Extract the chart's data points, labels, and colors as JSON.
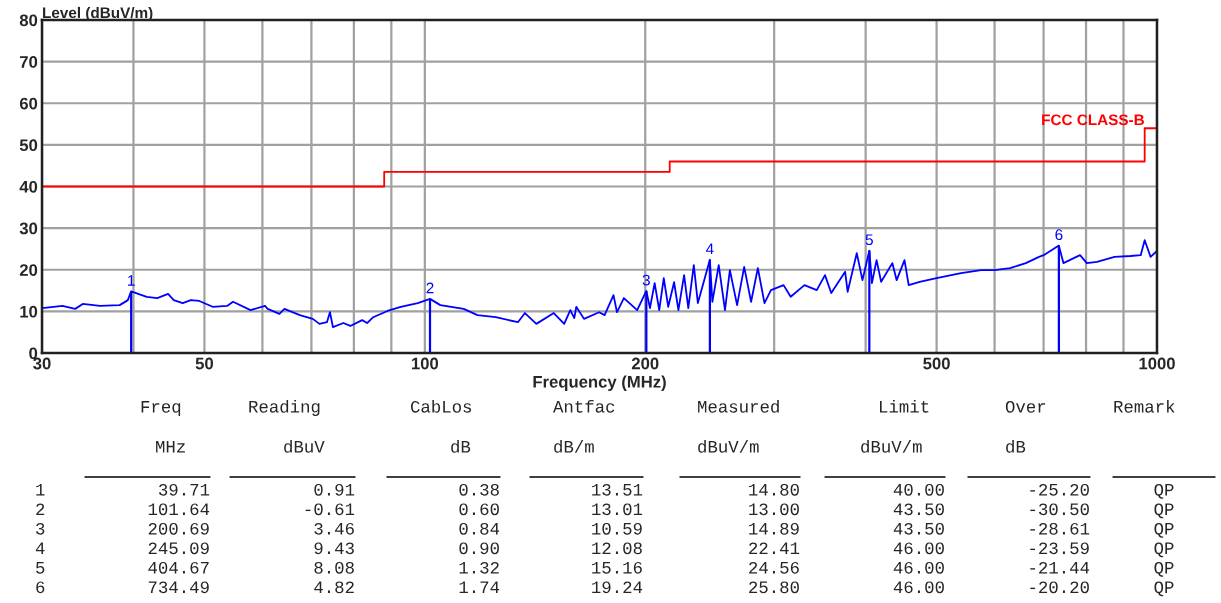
{
  "chart_data": {
    "type": "line",
    "ylabel": "Level (dBuV/m)",
    "xlabel": "Frequency (MHz)",
    "log": "x",
    "xlim": [
      30,
      1000
    ],
    "xticks": [
      30,
      {
        "value": 40,
        "label": null
      },
      50,
      {
        "value": 60,
        "label": null
      },
      {
        "value": 70,
        "label": null
      },
      {
        "value": 80,
        "label": null
      },
      {
        "value": 90,
        "label": null
      },
      100,
      200,
      {
        "value": 300,
        "label": null
      },
      {
        "value": 400,
        "label": null
      },
      500,
      {
        "value": 600,
        "label": null
      },
      {
        "value": 700,
        "label": null
      },
      {
        "value": 800,
        "label": null
      },
      {
        "value": 900,
        "label": null
      },
      1000
    ],
    "ylim": [
      0,
      80
    ],
    "yticks": [
      0,
      10,
      20,
      30,
      40,
      50,
      60,
      70,
      80
    ],
    "grid": true,
    "legend": false,
    "series": [
      {
        "color": "#0000ff",
        "x": [
          30,
          32,
          33.3,
          34.1,
          36,
          38.3,
          39.3,
          39.71,
          41.7,
          43.1,
          44.6,
          45.4,
          46.7,
          47.9,
          49.2,
          51.3,
          53.7,
          54.7,
          57.8,
          60.5,
          61,
          63.3,
          64.3,
          67.5,
          70.3,
          71.8,
          73.5,
          74.2,
          74.9,
          77.4,
          79.1,
          82.1,
          83.4,
          85,
          88.9,
          92.7,
          97.8,
          101.64,
          105,
          113,
          118,
          125,
          134,
          137,
          142,
          150,
          155,
          158,
          160,
          161,
          165,
          173,
          176,
          181,
          183,
          187,
          195,
          200.69,
          203,
          206,
          209,
          212,
          215,
          219,
          222,
          226,
          229,
          233,
          236,
          245.09,
          247,
          252,
          257,
          261,
          267,
          273,
          279,
          285,
          291,
          297,
          309,
          316,
          330,
          343,
          352,
          359,
          375,
          378,
          389,
          396,
          404.67,
          408,
          414,
          420,
          435,
          441,
          452,
          458,
          474,
          500,
          540,
          575,
          600,
          630,
          662,
          690,
          700,
          734.49,
          745,
          785,
          802,
          828,
          875,
          920,
          950,
          962,
          980,
          1000
        ],
        "values": [
          10.8,
          11.3,
          10.6,
          11.8,
          11.3,
          11.5,
          12.7,
          14.8,
          13.5,
          13.2,
          14.2,
          12.7,
          12.0,
          12.7,
          12.5,
          11.1,
          11.3,
          12.3,
          10.3,
          11.3,
          10.6,
          9.4,
          10.6,
          9.1,
          8.2,
          7.0,
          7.4,
          9.8,
          6.2,
          7.2,
          6.5,
          7.9,
          7.2,
          8.6,
          10.1,
          11.1,
          12.0,
          13.0,
          11.5,
          10.6,
          9.1,
          8.6,
          7.4,
          9.6,
          7.0,
          9.6,
          7.0,
          10.3,
          8.4,
          11.1,
          8.2,
          9.8,
          9.1,
          13.9,
          9.8,
          13.2,
          10.3,
          14.9,
          10.8,
          16.8,
          10.3,
          18.0,
          11.1,
          17.0,
          10.3,
          18.7,
          10.8,
          21.1,
          12.0,
          22.4,
          12.3,
          21.1,
          10.3,
          19.9,
          11.5,
          20.7,
          12.3,
          20.4,
          12.0,
          15.1,
          16.3,
          13.5,
          16.3,
          15.1,
          18.7,
          14.4,
          19.5,
          14.7,
          24.0,
          17.5,
          24.6,
          16.8,
          22.3,
          17.1,
          21.6,
          17.5,
          22.3,
          16.3,
          17.1,
          18.0,
          19.2,
          19.9,
          19.9,
          20.4,
          21.6,
          23.1,
          23.5,
          25.8,
          21.6,
          23.5,
          21.6,
          21.9,
          23.1,
          23.3,
          23.5,
          27.1,
          23.1,
          24.5
        ]
      },
      {
        "type": "step",
        "name": "FCC CLASS-B",
        "color": "#ff0000",
        "x": [
          30,
          88,
          216,
          962,
          1000
        ],
        "values": [
          40,
          43.5,
          46,
          54,
          54
        ]
      },
      {
        "type": "bar",
        "color": "#0000ff",
        "x": [
          39.71,
          101.64,
          200.69,
          245.09,
          404.67,
          734.49
        ],
        "values": [
          14.8,
          13.0,
          14.9,
          22.4,
          24.6,
          25.8
        ]
      }
    ],
    "annotations": [
      "Freq",
      "Reading",
      "CabLos",
      "Antfac",
      "Measured",
      "Limit",
      "Over",
      "Remark",
      "MHz",
      "dBuV",
      "dB",
      "dB/m",
      "dBuV/m",
      "dBuV/m",
      "dB",
      "1",
      "39.71",
      "0.91",
      "0.38",
      "13.51",
      "14.80",
      "40.00",
      "-25.20",
      "QP",
      "2",
      "101.64",
      "-0.61",
      "0.60",
      "13.01",
      "13.00",
      "43.50",
      "-30.50",
      "QP",
      "3",
      "200.69",
      "3.46",
      "0.84",
      "10.59",
      "14.89",
      "43.50",
      "-28.61",
      "QP",
      "4",
      "245.09",
      "9.43",
      "0.90",
      "12.08",
      "22.41",
      "46.00",
      "-23.59",
      "QP",
      "5",
      "404.67",
      "8.08",
      "1.32",
      "15.16",
      "24.56",
      "46.00",
      "-21.44",
      "QP",
      "6",
      "734.49",
      "4.82",
      "1.74",
      "19.24",
      "25.80",
      "46.00",
      "-20.20",
      "QP",
      {
        "text": "1",
        "x": 39.71,
        "y": 14.8
      },
      {
        "text": "2",
        "x": 101.64,
        "y": 13.0
      },
      {
        "text": "3",
        "x": 200.69,
        "y": 14.9
      },
      {
        "text": "4",
        "x": 245.09,
        "y": 22.4
      },
      {
        "text": "5",
        "x": 404.67,
        "y": 24.6
      },
      {
        "text": "6",
        "x": 734.49,
        "y": 25.8
      }
    ]
  }
}
